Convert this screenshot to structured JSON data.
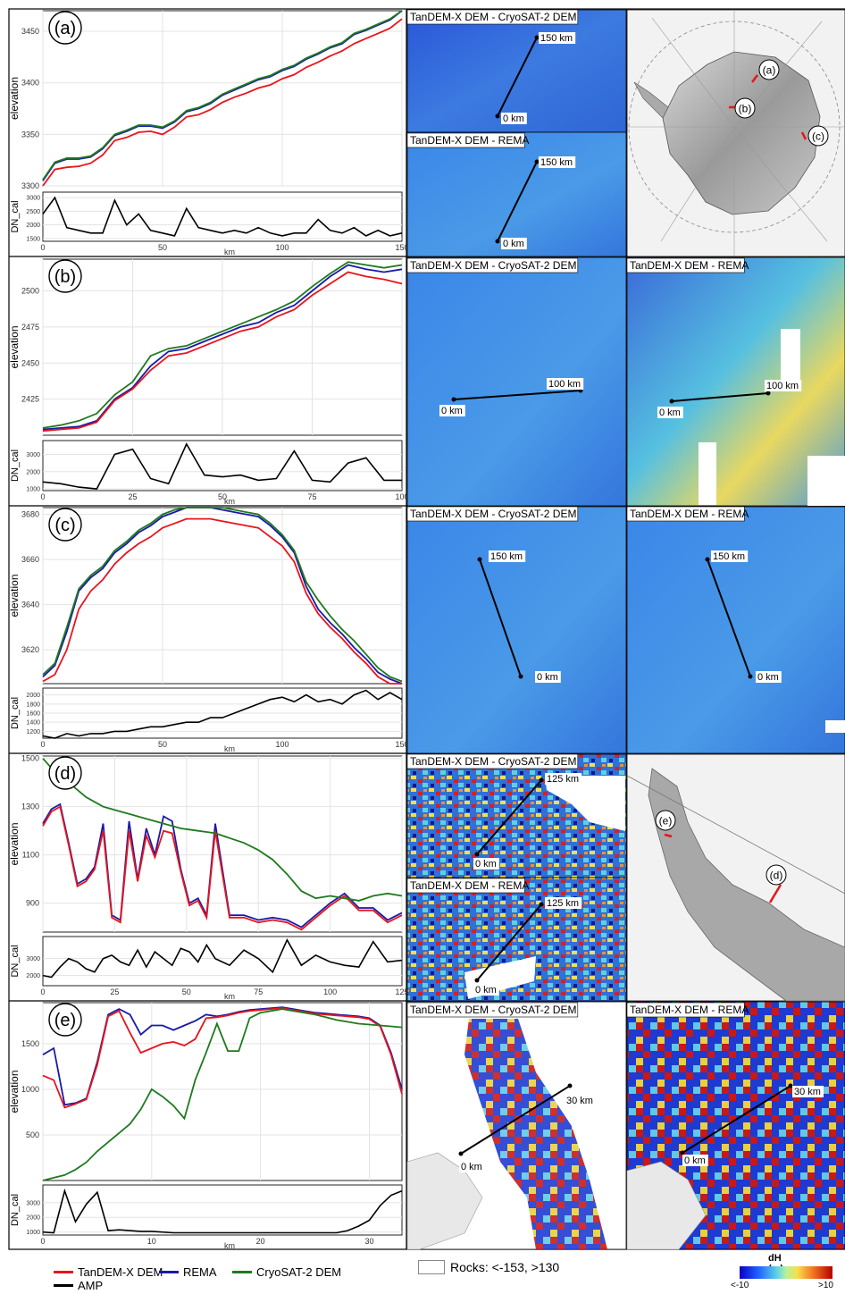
{
  "legend": {
    "tandemx": "TanDEM-X DEM",
    "rema": "REMA",
    "cryosat": "CryoSAT-2 DEM",
    "amp": "AMP",
    "rocks": "Rocks: <-153, >130",
    "colorbar_title": "dH (m)",
    "colorbar_min": "<-10",
    "colorbar_max": ">10"
  },
  "colors": {
    "tandemx": "#e8141b",
    "rema": "#1a1aa8",
    "cryosat": "#1f7a1f",
    "amp": "#000000"
  },
  "chart_data": [
    {
      "type": "line",
      "panel": "(a)",
      "xlabel": "km",
      "ylabel": "elevation",
      "ylabel2": "DN_cal",
      "xlim": [
        0,
        150
      ],
      "ylim": [
        3300,
        3470
      ],
      "yticks": [
        3300,
        3350,
        3400,
        3450
      ],
      "xticks": [
        0,
        50,
        100,
        150
      ],
      "x": [
        0,
        5,
        10,
        15,
        20,
        25,
        30,
        35,
        40,
        45,
        50,
        55,
        60,
        65,
        70,
        75,
        80,
        85,
        90,
        95,
        100,
        105,
        110,
        115,
        120,
        125,
        130,
        135,
        140,
        145,
        150
      ],
      "series": [
        {
          "name": "REMA",
          "values": [
            3305,
            3322,
            3326,
            3326,
            3328,
            3336,
            3349,
            3353,
            3358,
            3358,
            3356,
            3362,
            3372,
            3375,
            3380,
            3388,
            3393,
            3398,
            3403,
            3406,
            3412,
            3416,
            3423,
            3428,
            3434,
            3438,
            3447,
            3451,
            3456,
            3461,
            3472
          ]
        },
        {
          "name": "CryoSAT-2 DEM",
          "values": [
            3306,
            3323,
            3327,
            3327,
            3329,
            3337,
            3350,
            3354,
            3359,
            3359,
            3357,
            3363,
            3373,
            3376,
            3381,
            3389,
            3394,
            3399,
            3404,
            3407,
            3413,
            3417,
            3424,
            3429,
            3435,
            3439,
            3448,
            3452,
            3457,
            3462,
            3473
          ]
        },
        {
          "name": "TanDEM-X DEM",
          "values": [
            3300,
            3316,
            3318,
            3319,
            3322,
            3330,
            3344,
            3347,
            3352,
            3353,
            3350,
            3357,
            3367,
            3369,
            3374,
            3381,
            3386,
            3390,
            3395,
            3398,
            3404,
            3408,
            3415,
            3420,
            3426,
            3431,
            3438,
            3443,
            3448,
            3453,
            3462
          ]
        }
      ],
      "amp": {
        "ylim": [
          1400,
          3200
        ],
        "yticks": [
          1500,
          2000,
          2500,
          3000
        ],
        "values": [
          2400,
          3000,
          1900,
          1800,
          1700,
          1700,
          2900,
          2000,
          2400,
          1800,
          1700,
          1600,
          2600,
          1900,
          1800,
          1700,
          1800,
          1700,
          1900,
          1700,
          1600,
          1700,
          1700,
          2200,
          1800,
          1700,
          1900,
          1600,
          1800,
          1600,
          1700
        ]
      }
    },
    {
      "type": "line",
      "panel": "(b)",
      "xlabel": "km",
      "ylabel": "elevation",
      "ylabel2": "DN_cal",
      "xlim": [
        0,
        100
      ],
      "ylim": [
        2400,
        2522
      ],
      "yticks": [
        2425,
        2450,
        2475,
        2500
      ],
      "xticks": [
        0,
        25,
        50,
        75,
        100
      ],
      "x": [
        0,
        5,
        10,
        15,
        20,
        25,
        30,
        35,
        40,
        45,
        50,
        55,
        60,
        65,
        70,
        75,
        80,
        85,
        90,
        95,
        100
      ],
      "series": [
        {
          "name": "REMA",
          "values": [
            2404,
            2405,
            2406,
            2410,
            2425,
            2433,
            2448,
            2458,
            2460,
            2465,
            2470,
            2475,
            2478,
            2485,
            2490,
            2500,
            2510,
            2518,
            2515,
            2513,
            2515
          ]
        },
        {
          "name": "CryoSAT-2 DEM",
          "values": [
            2405,
            2407,
            2410,
            2415,
            2428,
            2437,
            2455,
            2460,
            2462,
            2467,
            2472,
            2477,
            2482,
            2487,
            2493,
            2503,
            2512,
            2520,
            2518,
            2516,
            2518
          ]
        },
        {
          "name": "TanDEM-X DEM",
          "values": [
            2403,
            2404,
            2405,
            2409,
            2424,
            2432,
            2445,
            2455,
            2457,
            2462,
            2467,
            2472,
            2475,
            2482,
            2487,
            2497,
            2505,
            2513,
            2510,
            2508,
            2505
          ]
        }
      ],
      "amp": {
        "ylim": [
          900,
          3800
        ],
        "yticks": [
          1000,
          2000,
          3000
        ],
        "values": [
          1400,
          1300,
          1100,
          1000,
          3000,
          3300,
          1600,
          1300,
          3600,
          1800,
          1700,
          1800,
          1500,
          1600,
          3200,
          1500,
          1400,
          2500,
          2800,
          1500,
          1500
        ]
      }
    },
    {
      "type": "line",
      "panel": "(c)",
      "xlabel": "km",
      "ylabel": "elevation",
      "ylabel2": "DN_cal",
      "xlim": [
        0,
        150
      ],
      "ylim": [
        3605,
        3683
      ],
      "yticks": [
        3620,
        3640,
        3660,
        3680
      ],
      "xticks": [
        0,
        50,
        100,
        150
      ],
      "x": [
        0,
        5,
        10,
        15,
        20,
        25,
        30,
        35,
        40,
        45,
        50,
        55,
        60,
        65,
        70,
        75,
        80,
        85,
        90,
        95,
        100,
        105,
        110,
        115,
        120,
        125,
        130,
        135,
        140,
        145,
        150
      ],
      "series": [
        {
          "name": "REMA",
          "values": [
            3608,
            3613,
            3628,
            3646,
            3652,
            3656,
            3663,
            3667,
            3672,
            3675,
            3679,
            3681,
            3684,
            3683,
            3683,
            3682,
            3681,
            3680,
            3679,
            3675,
            3670,
            3663,
            3648,
            3638,
            3632,
            3627,
            3621,
            3616,
            3610,
            3607,
            3605
          ]
        },
        {
          "name": "CryoSAT-2 DEM",
          "values": [
            3609,
            3614,
            3630,
            3647,
            3653,
            3657,
            3664,
            3668,
            3673,
            3676,
            3680,
            3682,
            3685,
            3684,
            3684,
            3683,
            3682,
            3681,
            3680,
            3676,
            3671,
            3664,
            3650,
            3642,
            3635,
            3629,
            3624,
            3618,
            3612,
            3608,
            3606
          ]
        },
        {
          "name": "TanDEM-X DEM",
          "values": [
            3606,
            3609,
            3620,
            3638,
            3646,
            3651,
            3658,
            3663,
            3667,
            3670,
            3674,
            3676,
            3678,
            3678,
            3678,
            3677,
            3676,
            3675,
            3674,
            3670,
            3666,
            3659,
            3645,
            3636,
            3630,
            3625,
            3619,
            3614,
            3608,
            3605,
            3604
          ]
        }
      ],
      "amp": {
        "ylim": [
          1050,
          2150
        ],
        "yticks": [
          1200,
          1400,
          1600,
          1800,
          2000
        ],
        "values": [
          1100,
          1050,
          1150,
          1100,
          1150,
          1150,
          1200,
          1200,
          1250,
          1300,
          1300,
          1350,
          1400,
          1400,
          1500,
          1500,
          1600,
          1700,
          1800,
          1900,
          1950,
          1850,
          2000,
          1850,
          1900,
          1800,
          2000,
          2100,
          1900,
          2050,
          1900
        ]
      }
    },
    {
      "type": "line",
      "panel": "(d)",
      "xlabel": "km",
      "ylabel": "elevation",
      "ylabel2": "DN_cal",
      "xlim": [
        0,
        125
      ],
      "ylim": [
        780,
        1510
      ],
      "yticks": [
        900,
        1100,
        1300,
        1500
      ],
      "xticks": [
        0,
        25,
        50,
        75,
        100,
        125
      ],
      "x": [
        0,
        3,
        6,
        9,
        12,
        15,
        18,
        21,
        24,
        27,
        30,
        33,
        36,
        39,
        42,
        45,
        48,
        51,
        54,
        57,
        60,
        65,
        70,
        75,
        80,
        85,
        90,
        95,
        100,
        105,
        110,
        115,
        120,
        125
      ],
      "series": [
        {
          "name": "REMA",
          "values": [
            1230,
            1290,
            1310,
            1150,
            980,
            1000,
            1050,
            1230,
            850,
            830,
            1240,
            1000,
            1210,
            1100,
            1260,
            1240,
            1040,
            900,
            920,
            850,
            1230,
            850,
            850,
            830,
            840,
            830,
            800,
            850,
            900,
            940,
            880,
            880,
            830,
            860
          ]
        },
        {
          "name": "TanDEM-X DEM",
          "values": [
            1220,
            1280,
            1300,
            1140,
            970,
            990,
            1040,
            1200,
            840,
            820,
            1200,
            990,
            1180,
            1090,
            1200,
            1190,
            1030,
            890,
            910,
            840,
            1200,
            840,
            840,
            820,
            830,
            820,
            790,
            840,
            890,
            930,
            870,
            870,
            820,
            850
          ]
        },
        {
          "name": "CryoSAT-2 DEM",
          "values": [
            1500,
            1460,
            1430,
            1400,
            1370,
            1340,
            1320,
            1300,
            1290,
            1280,
            1270,
            1260,
            1250,
            1240,
            1230,
            1220,
            1210,
            1205,
            1200,
            1195,
            1190,
            1170,
            1150,
            1120,
            1080,
            1020,
            950,
            920,
            930,
            920,
            910,
            930,
            940,
            930
          ]
        }
      ],
      "amp": {
        "ylim": [
          1400,
          4300
        ],
        "yticks": [
          2000,
          3000
        ],
        "values": [
          2000,
          1900,
          2500,
          3000,
          2800,
          2400,
          2200,
          3000,
          3200,
          2800,
          2600,
          3500,
          2500,
          3400,
          3000,
          2600,
          3600,
          3400,
          2800,
          3800,
          3000,
          2600,
          3500,
          3000,
          2200,
          4100,
          2600,
          3200,
          2800,
          2600,
          2500,
          4000,
          2800,
          2900
        ]
      }
    },
    {
      "type": "line",
      "panel": "(e)",
      "xlabel": "km",
      "ylabel": "elevation",
      "ylabel2": "DN_cal",
      "xlim": [
        0,
        33
      ],
      "ylim": [
        0,
        1950
      ],
      "yticks": [
        500,
        1000,
        1500
      ],
      "xticks": [
        0,
        10,
        20,
        30
      ],
      "x": [
        0,
        1,
        2,
        3,
        4,
        5,
        6,
        7,
        8,
        9,
        10,
        11,
        12,
        13,
        14,
        15,
        16,
        17,
        18,
        19,
        20,
        21,
        22,
        23,
        24,
        25,
        26,
        27,
        28,
        29,
        30,
        31,
        32,
        33
      ],
      "series": [
        {
          "name": "REMA",
          "values": [
            1380,
            1450,
            830,
            850,
            900,
            1300,
            1820,
            1880,
            1820,
            1600,
            1700,
            1700,
            1650,
            1700,
            1750,
            1820,
            1800,
            1820,
            1850,
            1870,
            1880,
            1890,
            1900,
            1880,
            1860,
            1840,
            1830,
            1820,
            1810,
            1800,
            1780,
            1700,
            1400,
            1000
          ]
        },
        {
          "name": "TanDEM-X DEM",
          "values": [
            1150,
            1100,
            800,
            840,
            890,
            1270,
            1800,
            1860,
            1620,
            1400,
            1450,
            1500,
            1520,
            1480,
            1550,
            1780,
            1790,
            1810,
            1840,
            1860,
            1870,
            1880,
            1890,
            1870,
            1850,
            1830,
            1820,
            1810,
            1800,
            1790,
            1770,
            1690,
            1380,
            950
          ]
        },
        {
          "name": "CryoSAT-2 DEM",
          "values": [
            0,
            30,
            60,
            120,
            200,
            320,
            420,
            520,
            620,
            780,
            1000,
            920,
            820,
            680,
            1100,
            1400,
            1720,
            1420,
            1420,
            1780,
            1840,
            1860,
            1880,
            1860,
            1840,
            1820,
            1790,
            1760,
            1740,
            1720,
            1710,
            1700,
            1690,
            1680
          ]
        }
      ],
      "amp": {
        "ylim": [
          800,
          4200
        ],
        "yticks": [
          1000,
          2000,
          3000
        ],
        "values": [
          1000,
          950,
          3800,
          1700,
          2900,
          3700,
          1100,
          1150,
          1100,
          1050,
          1050,
          1000,
          950,
          950,
          950,
          950,
          950,
          950,
          950,
          950,
          950,
          950,
          950,
          950,
          950,
          950,
          950,
          950,
          1100,
          1400,
          1800,
          2800,
          3500,
          3800
        ]
      }
    }
  ],
  "maps": {
    "a": {
      "top": "TanDEM-X DEM - CryoSAT-2 DEM",
      "bottom": "TanDEM-X DEM - REMA",
      "top_start": "0 km",
      "top_end": "150 km",
      "bottom_start": "0 km",
      "bottom_end": "150 km",
      "overview_labels": [
        "(a)",
        "(b)",
        "(c)"
      ]
    },
    "b": {
      "left": "TanDEM-X DEM - CryoSAT-2 DEM",
      "right": "TanDEM-X DEM - REMA",
      "start": "0 km",
      "end": "100 km"
    },
    "c": {
      "left": "TanDEM-X DEM - CryoSAT-2 DEM",
      "right": "TanDEM-X DEM - REMA",
      "start": "0 km",
      "end": "150 km"
    },
    "d": {
      "top": "TanDEM-X DEM - CryoSAT-2 DEM",
      "bottom": "TanDEM-X DEM - REMA",
      "start": "0 km",
      "end": "125 km",
      "overview_labels": [
        "(e)",
        "(d)"
      ]
    },
    "e": {
      "left": "TanDEM-X DEM - CryoSAT-2 DEM",
      "right": "TanDEM-X DEM - REMA",
      "start": "0 km",
      "end": "30 km"
    }
  }
}
